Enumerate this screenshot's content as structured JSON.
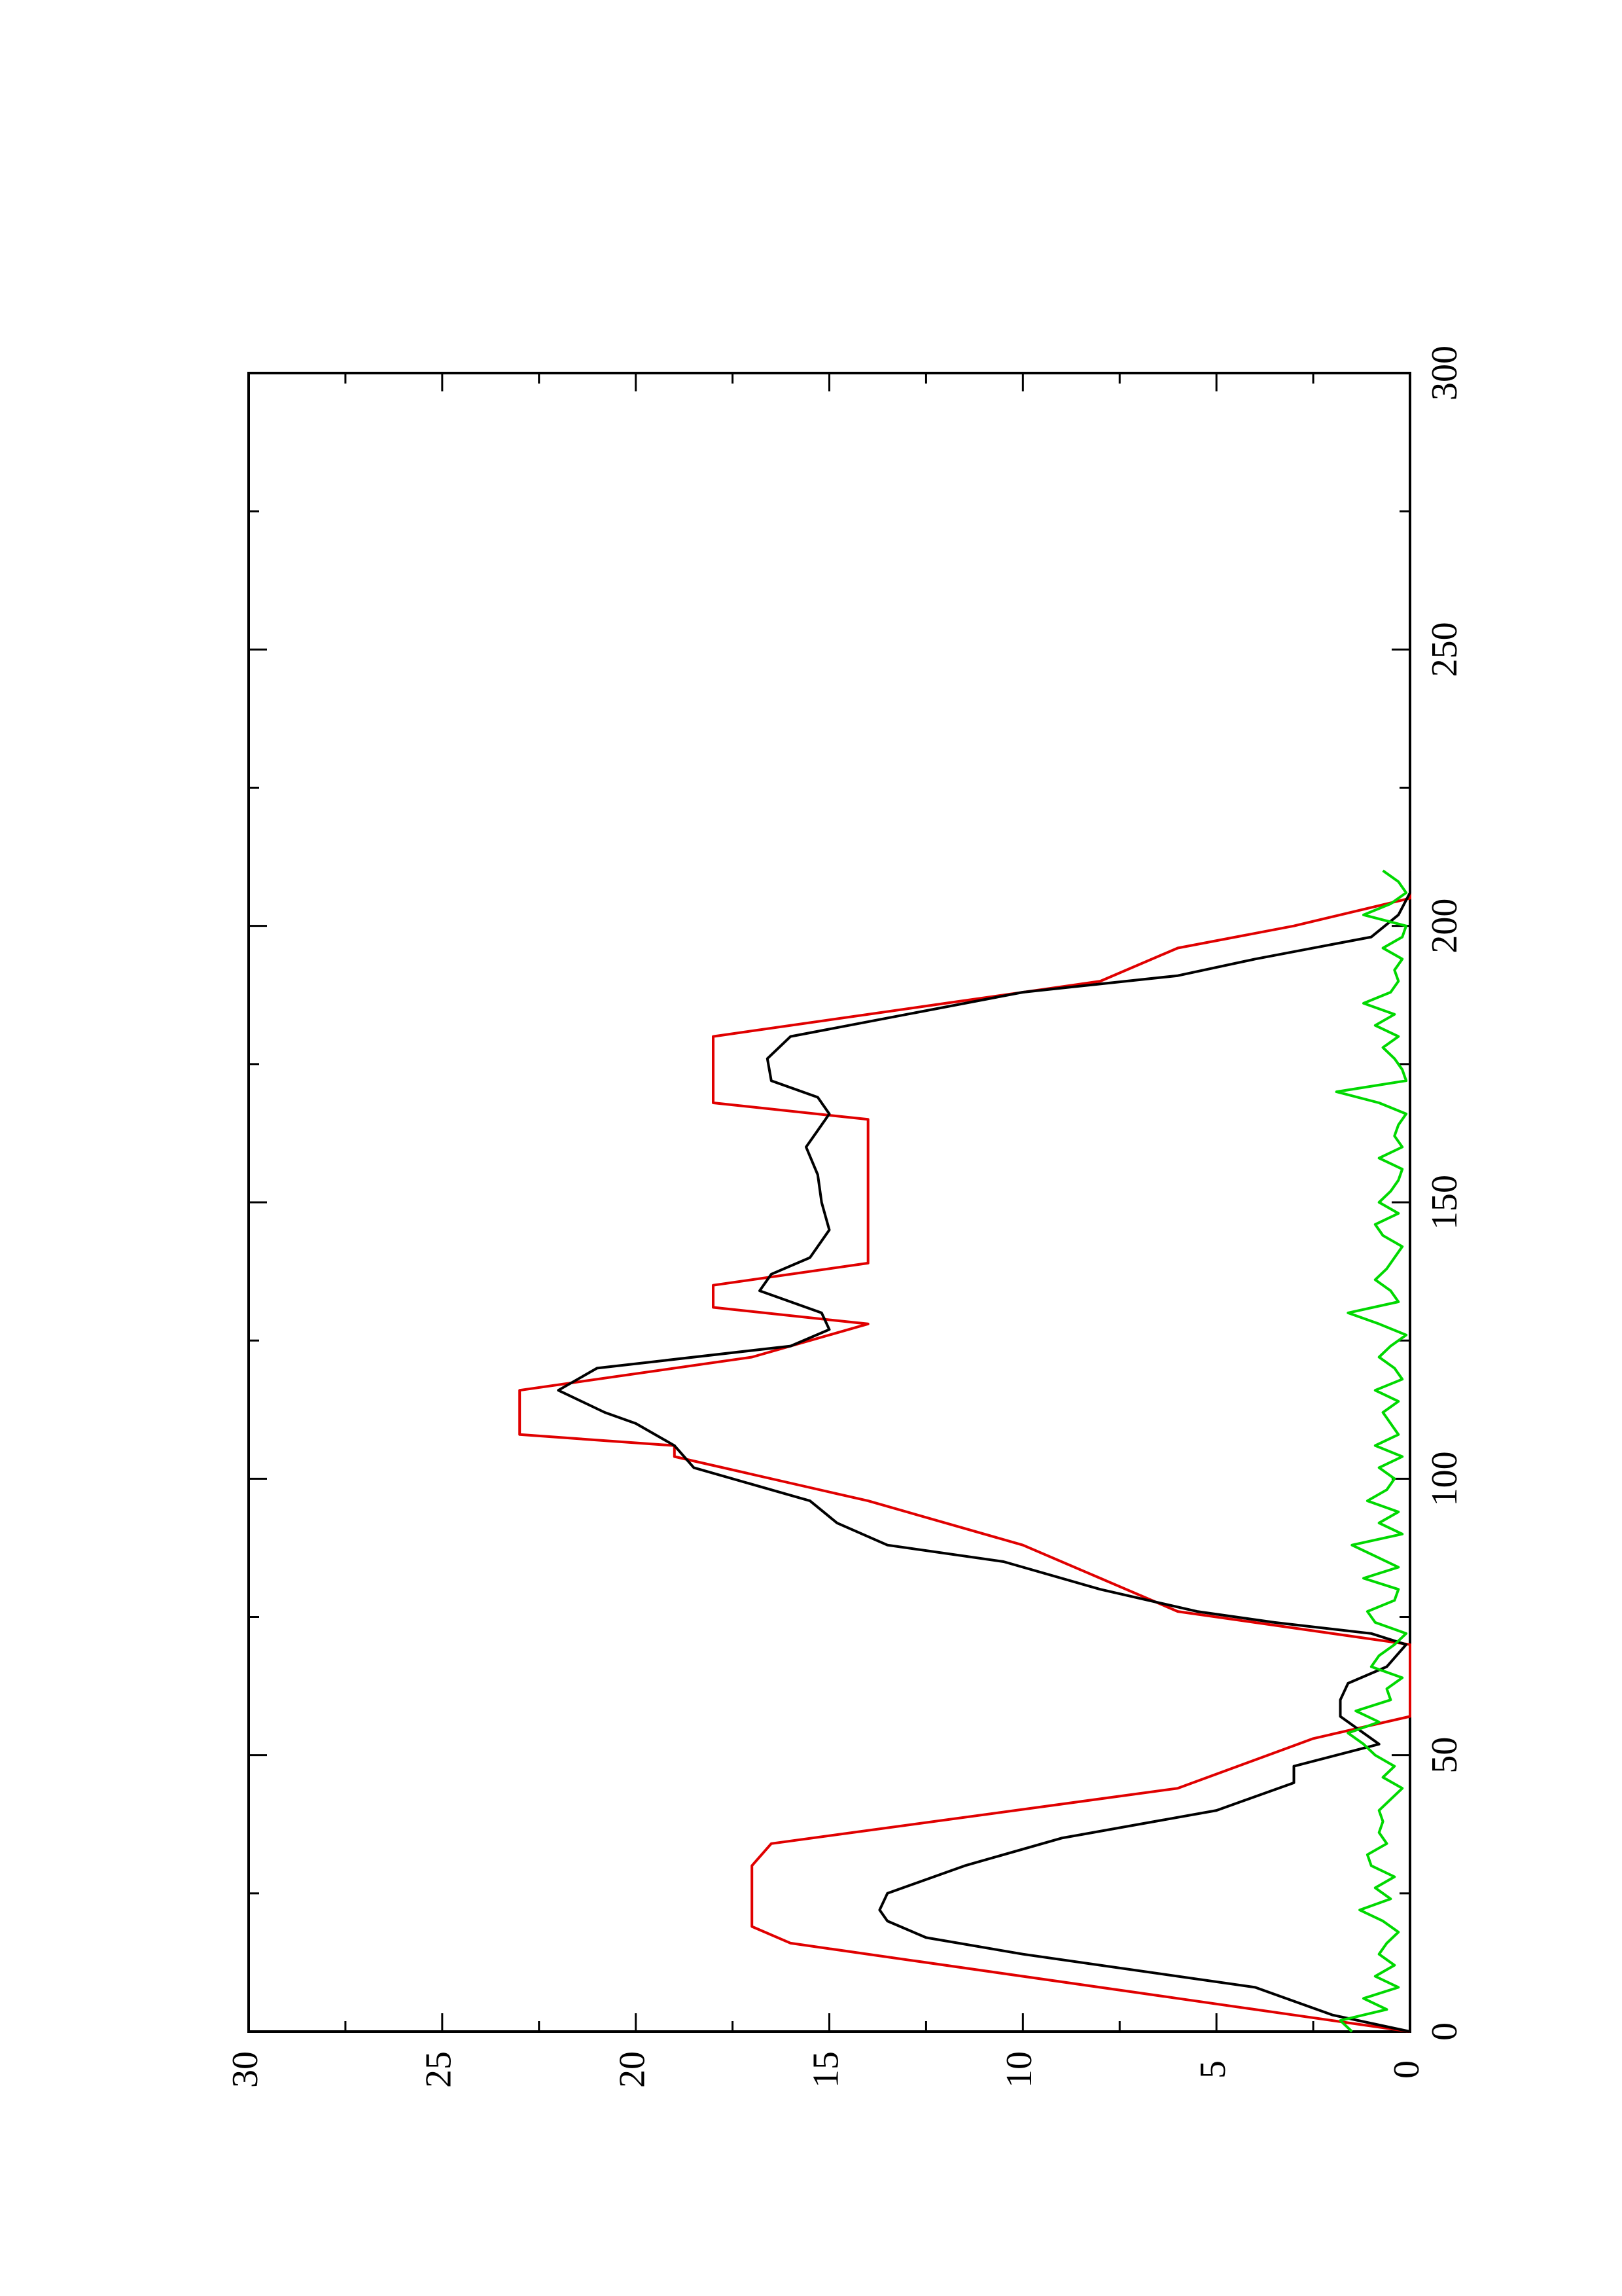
{
  "chart_data": {
    "type": "line",
    "title": "",
    "xlabel": "",
    "ylabel": "",
    "orientation": "rotated-90-ccw",
    "xlim": [
      0,
      300
    ],
    "ylim": [
      0,
      30
    ],
    "x_ticks": [
      "0",
      "50",
      "100",
      "150",
      "200",
      "250",
      "300"
    ],
    "y_ticks": [
      "0",
      "5",
      "10",
      "15",
      "20",
      "25",
      "30"
    ],
    "grid": false,
    "legend": "none",
    "series": [
      {
        "color": "#e00000",
        "x": [
          0,
          3,
          6,
          16,
          19,
          26,
          30,
          34,
          44,
          53,
          57,
          70,
          76,
          82,
          88,
          96,
          104,
          106,
          108,
          116,
          122,
          128,
          131,
          135,
          139,
          145,
          150,
          155,
          160,
          165,
          168,
          172,
          176,
          180,
          186,
          190,
          196,
          200,
          205,
          210
        ],
        "y": [
          0,
          3,
          6,
          16,
          17,
          17,
          17,
          16.5,
          6,
          2.5,
          0,
          0,
          6,
          8,
          10,
          14,
          19,
          19,
          23,
          23,
          17,
          14,
          18,
          18,
          14,
          14,
          14,
          14,
          14,
          14,
          18,
          18,
          18,
          18,
          12,
          8,
          6,
          3,
          0,
          0
        ]
      },
      {
        "color": "#000000",
        "x": [
          0,
          3,
          8,
          14,
          17,
          20,
          22,
          25,
          30,
          35,
          40,
          45,
          48,
          52,
          57,
          60,
          63,
          66,
          70,
          72,
          74,
          76,
          80,
          85,
          88,
          92,
          96,
          102,
          106,
          110,
          112,
          116,
          120,
          124,
          127,
          130,
          134,
          137,
          140,
          145,
          150,
          155,
          160,
          163,
          166,
          169,
          172,
          176,
          180,
          184,
          188,
          191,
          194,
          198,
          202,
          206,
          208,
          210
        ],
        "y": [
          0,
          2,
          4,
          10,
          12.5,
          13.5,
          13.7,
          13.5,
          11.5,
          9,
          5,
          3,
          3,
          0.8,
          1.8,
          1.8,
          1.6,
          0.6,
          0.1,
          1,
          3.5,
          5.5,
          8,
          10.5,
          13.5,
          14.8,
          15.5,
          18.5,
          19,
          20,
          20.8,
          22,
          21,
          16,
          15,
          15.2,
          16.8,
          16.5,
          15.5,
          15,
          15.2,
          15.3,
          15.6,
          15.3,
          15,
          15.3,
          16.5,
          16.6,
          16,
          13,
          10,
          6,
          4,
          1,
          0.3,
          0,
          0,
          0
        ]
      },
      {
        "color": "#00d800",
        "x": [
          0,
          2,
          4,
          6,
          8,
          10,
          12,
          14,
          16,
          18,
          20,
          22,
          24,
          26,
          28,
          30,
          32,
          34,
          36,
          38,
          40,
          42,
          44,
          46,
          48,
          50,
          52,
          54,
          56,
          58,
          60,
          62,
          64,
          66,
          68,
          70,
          72,
          74,
          76,
          78,
          80,
          82,
          84,
          86,
          88,
          90,
          92,
          94,
          96,
          98,
          100,
          102,
          104,
          106,
          108,
          110,
          112,
          114,
          116,
          118,
          120,
          122,
          124,
          126,
          128,
          130,
          132,
          134,
          136,
          138,
          140,
          142,
          144,
          146,
          148,
          150,
          152,
          154,
          156,
          158,
          160,
          162,
          164,
          166,
          168,
          170,
          172,
          174,
          176,
          178,
          180,
          182,
          184,
          186,
          188,
          190,
          192,
          194,
          196,
          198,
          200,
          202,
          204,
          206,
          208,
          210
        ],
        "y": [
          1.5,
          1.8,
          0.6,
          1.2,
          0.3,
          0.9,
          0.4,
          0.8,
          0.6,
          0.3,
          0.7,
          1.3,
          0.5,
          0.9,
          0.4,
          1.0,
          1.1,
          0.6,
          0.8,
          0.7,
          0.8,
          0.5,
          0.2,
          0.7,
          0.4,
          0.9,
          1.2,
          1.6,
          0.8,
          1.4,
          0.5,
          0.6,
          0.2,
          1.0,
          0.8,
          0.4,
          0.1,
          0.9,
          1.1,
          0.4,
          0.3,
          1.2,
          0.3,
          0.9,
          1.5,
          0.2,
          0.8,
          0.3,
          1.1,
          0.6,
          0.4,
          0.8,
          0.2,
          0.9,
          0.3,
          0.5,
          0.7,
          0.3,
          0.9,
          0.2,
          0.4,
          0.8,
          0.5,
          0.1,
          0.8,
          1.6,
          0.3,
          0.5,
          0.9,
          0.6,
          0.4,
          0.2,
          0.7,
          0.9,
          0.3,
          0.8,
          0.5,
          0.3,
          0.2,
          0.8,
          0.2,
          0.4,
          0.3,
          0.1,
          0.8,
          1.9,
          0.1,
          0.2,
          0.4,
          0.7,
          0.3,
          0.9,
          0.4,
          1.2,
          0.5,
          0.3,
          0.4,
          0.2,
          0.7,
          0.2,
          0.1,
          1.2,
          0.5,
          0.1,
          0.3,
          0.7
        ]
      }
    ]
  }
}
